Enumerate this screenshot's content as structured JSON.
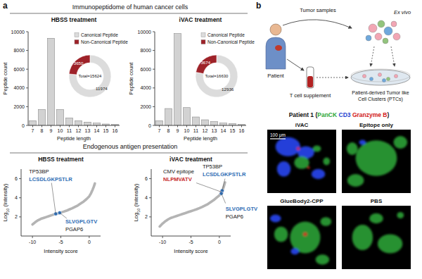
{
  "figure": {
    "panel_a": {
      "label": "a",
      "header": "Immunopeptidome of human cancer cells",
      "section": "Endogenous antigen presentation"
    },
    "panel_b": {
      "label": "b",
      "diagram": {
        "patient": "Patient",
        "tumor_samples": "Tumor samples",
        "ex_vivo": "Ex vivo",
        "t_cell": "T cell supplement",
        "ptc": [
          "Patient-derived Tumor like",
          "Cell Clusters (PTCs)"
        ]
      },
      "microscopy": {
        "title_parts": [
          {
            "text": "Patient 1 (",
            "color": "#111111"
          },
          {
            "text": "PanCK",
            "color": "#2ea836"
          },
          {
            "text": " CD3",
            "color": "#1f3fd0"
          },
          {
            "text": " Granzyme B",
            "color": "#d22020"
          },
          {
            "text": ")",
            "color": "#111111"
          }
        ],
        "panels": [
          "iVAC",
          "Epitope only",
          "GlueBody2-CPP",
          "PBS"
        ],
        "scale_bar": "100 μm"
      }
    }
  },
  "chart_data": [
    {
      "type": "bar",
      "title": "HBSS treatment",
      "categories": [
        "7",
        "8",
        "9",
        "10",
        "11",
        "12",
        "13",
        "14",
        "15",
        "16"
      ],
      "values": [
        500,
        1700,
        9300,
        1700,
        800,
        500,
        350,
        250,
        150,
        100
      ],
      "color": "#d2d2d2",
      "xlabel": "Peptide length",
      "ylabel": "Peptide count",
      "ylim": [
        0,
        10000
      ],
      "yticks": [
        0,
        2000,
        4000,
        6000,
        8000,
        10000
      ]
    },
    {
      "type": "pie",
      "categories": [
        "Canonical Peptide",
        "Non-Canonical Peptide"
      ],
      "values": [
        11974,
        3650
      ],
      "colors": [
        "#dcdcdc",
        "#9e2229"
      ],
      "data_labels": true,
      "annotation": "Total=15624",
      "legend": "top"
    },
    {
      "type": "bar",
      "title": "iVAC treatment",
      "categories": [
        "7",
        "8",
        "9",
        "10",
        "11",
        "12",
        "13",
        "14",
        "15",
        "16"
      ],
      "values": [
        500,
        1800,
        9800,
        1900,
        900,
        600,
        400,
        250,
        200,
        100
      ],
      "color": "#d2d2d2",
      "xlabel": "Peptide length",
      "ylabel": "Peptide count",
      "ylim": [
        0,
        10000
      ],
      "yticks": [
        0,
        2000,
        4000,
        6000,
        8000,
        10000
      ]
    },
    {
      "type": "pie",
      "categories": [
        "Canonical Peptide",
        "Non-Canonical Peptide"
      ],
      "values": [
        12936,
        3674
      ],
      "colors": [
        "#dcdcdc",
        "#9e2229"
      ],
      "data_labels": true,
      "annotation": "Total=16630",
      "legend": "top"
    },
    {
      "type": "scatter",
      "title": "HBSS treatment",
      "x": [
        -10,
        -9.5,
        -9,
        -8.5,
        -8,
        -7.5,
        -7,
        -6.5,
        -6,
        -5.5,
        -5,
        -4.5,
        -4,
        -3.5,
        -3,
        -2.5,
        -2,
        -1.5,
        -1,
        -0.5,
        0,
        0.3,
        0.6,
        0.8,
        1
      ],
      "values": [
        1.2,
        1.45,
        1.65,
        1.8,
        1.9,
        2.0,
        2.1,
        2.2,
        2.3,
        2.38,
        2.46,
        2.55,
        2.65,
        2.78,
        2.9,
        3.05,
        3.2,
        3.4,
        3.6,
        3.85,
        4.15,
        4.45,
        4.85,
        5.15,
        5.5
      ],
      "color": "#b4b4b4",
      "xlabel": "Intensity score",
      "ylabel": [
        "Log",
        "10",
        " (Intensity)"
      ],
      "xlim": [
        -12,
        2
      ],
      "ylim": [
        0,
        7
      ],
      "xticks": [
        -10,
        -5,
        0
      ],
      "yticks": [
        2,
        4,
        6
      ],
      "annotations": [
        {
          "x": -5.9,
          "y": 2.32,
          "color": "#2e6db4",
          "lines": [
            {
              "text": "TP53BP",
              "color": "#111111"
            },
            {
              "text": "LCSDLGKPSTLR",
              "color": "#2e6db4"
            }
          ]
        },
        {
          "x": -5.2,
          "y": 2.43,
          "color": "#2e6db4",
          "lines": [
            {
              "text": "SLVGPLGTV",
              "color": "#2e6db4"
            },
            {
              "text": "PGAP6",
              "color": "#111111"
            }
          ]
        }
      ]
    },
    {
      "type": "scatter",
      "title": "iVAC treatment",
      "x": [
        -10.5,
        -10,
        -9.5,
        -9,
        -8.5,
        -8,
        -7.5,
        -7,
        -6.5,
        -6,
        -5.5,
        -5,
        -4.5,
        -4,
        -3.5,
        -3,
        -2.5,
        -2,
        -1.5,
        -1,
        -0.5,
        0,
        0.3,
        0.6,
        0.8,
        1
      ],
      "values": [
        1.0,
        1.3,
        1.55,
        1.75,
        1.9,
        2.0,
        2.1,
        2.2,
        2.3,
        2.4,
        2.5,
        2.6,
        2.7,
        2.8,
        2.92,
        3.05,
        3.2,
        3.35,
        3.55,
        3.75,
        4.0,
        4.25,
        4.5,
        4.85,
        5.2,
        5.6
      ],
      "color": "#b4b4b4",
      "xlabel": "Intensity score",
      "ylabel": [
        "Log",
        "10",
        " (Intensity)"
      ],
      "xlim": [
        -12,
        2
      ],
      "ylim": [
        0,
        7
      ],
      "xticks": [
        -10,
        -5,
        0
      ],
      "yticks": [
        2,
        4,
        6
      ],
      "annotations": [
        {
          "x": 0.4,
          "y": 4.6,
          "color": "#c62828",
          "lines": [
            {
              "text": "CMV epitope",
              "color": "#111111"
            },
            {
              "text": "NLPMVATV",
              "color": "#c62828"
            }
          ]
        },
        {
          "x": 0.5,
          "y": 4.75,
          "color": "#2e6db4",
          "lines": [
            {
              "text": "TP53BP",
              "color": "#111111"
            },
            {
              "text": "LCSDLGKPSTLR",
              "color": "#2e6db4"
            }
          ]
        },
        {
          "x": 0.35,
          "y": 4.45,
          "color": "#2e6db4",
          "lines": [
            {
              "text": "SLVGPLGTV",
              "color": "#2e6db4"
            },
            {
              "text": "PGAP6",
              "color": "#111111"
            }
          ]
        }
      ]
    }
  ]
}
